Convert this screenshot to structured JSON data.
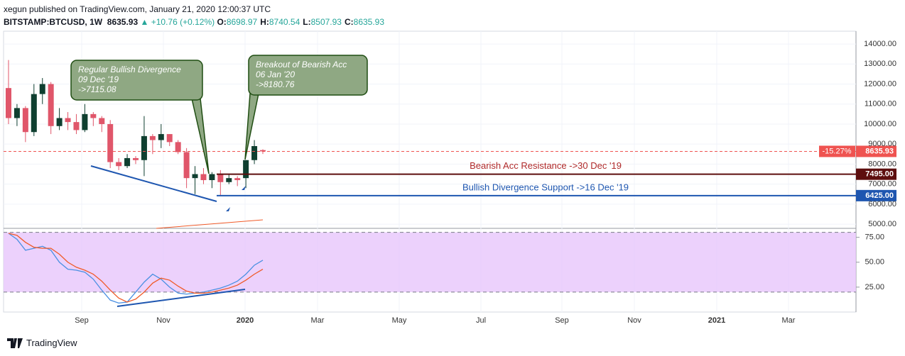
{
  "header": {
    "title": "xegun published on TradingView.com, January 21, 2020 12:00:37 UTC",
    "symbol": "BITSTAMP:BTCUSD, 1W",
    "price": "8635.93",
    "change": "▲ +10.76 (+0.12%)",
    "ohlc": [
      {
        "key": "O:",
        "value": "8698.97"
      },
      {
        "key": "H:",
        "value": "8740.54"
      },
      {
        "key": "L:",
        "value": "8507.93"
      },
      {
        "key": "C:",
        "value": "8635.93"
      }
    ]
  },
  "footer": {
    "brand": "TradingView"
  },
  "chart_data": {
    "type": "candlestick",
    "open": [
      11800,
      10300,
      10800,
      9600,
      11500,
      12000,
      9900,
      10300,
      10100,
      9700,
      10500,
      10300,
      10000,
      8100,
      7900,
      8300,
      8200,
      9400,
      9200,
      9500,
      9100,
      8600,
      7300,
      7500,
      7200,
      7500,
      7100,
      7300,
      7300,
      8200,
      8698.97
    ],
    "high": [
      13200,
      11000,
      10900,
      12000,
      12300,
      12100,
      10800,
      10600,
      10500,
      11000,
      10600,
      10400,
      10200,
      8300,
      8500,
      8400,
      10400,
      9500,
      10000,
      9500,
      9200,
      8800,
      7900,
      7800,
      7600,
      7700,
      7500,
      7400,
      8200,
      9200,
      8740.54
    ],
    "low": [
      10000,
      9900,
      9100,
      9400,
      11000,
      9500,
      9700,
      9700,
      9500,
      9600,
      9900,
      9600,
      7800,
      7700,
      7800,
      8000,
      7400,
      8500,
      8800,
      8900,
      8500,
      6800,
      6500,
      7000,
      6800,
      6400,
      7000,
      6900,
      6800,
      8000,
      8507.93
    ],
    "close": [
      10300,
      10800,
      9600,
      11500,
      12000,
      9900,
      10300,
      10100,
      9700,
      10500,
      10300,
      10000,
      8100,
      7900,
      8300,
      8200,
      9400,
      9200,
      9500,
      9100,
      8600,
      7300,
      7500,
      7200,
      7500,
      7100,
      7300,
      7200,
      8200,
      8900,
      8635.93
    ],
    "up_color": "#0f3f30",
    "down_color": "#e0566a",
    "ylim": [
      4790,
      14640
    ],
    "yticks": [
      {
        "value": 5000,
        "label": "5000.00"
      },
      {
        "value": 6000,
        "label": "6000.00"
      },
      {
        "value": 7000,
        "label": "7000.00"
      },
      {
        "value": 8000,
        "label": "8000.00"
      },
      {
        "value": 9000,
        "label": "9000.00"
      },
      {
        "value": 10000,
        "label": "10000.00"
      },
      {
        "value": 11000,
        "label": "11000.00"
      },
      {
        "value": 12000,
        "label": "12000.00"
      },
      {
        "value": 13000,
        "label": "13000.00"
      },
      {
        "value": 14000,
        "label": "14000.00"
      }
    ],
    "xticks": [
      "Sep",
      "Nov",
      "2020",
      "Mar",
      "May",
      "Jul",
      "Sep",
      "Nov",
      "2021",
      "Mar"
    ],
    "grid": true,
    "levels": [
      {
        "value": 8635.93,
        "label": "8635.93",
        "change": "-15.27%",
        "color": "#ef5350",
        "dashed": true
      },
      {
        "value": 7495,
        "label": "7495.00",
        "text": "Bearish Acc Resistance ->30 Dec '19",
        "color": "#5d0e0e",
        "text_color": "#b02a2a"
      },
      {
        "value": 6425,
        "label": "6425.00",
        "text": "Bullish Divergence Support ->16 Dec '19",
        "color": "#1e56b0",
        "text_color": "#1e56b0"
      }
    ],
    "annotations": [
      {
        "lines": [
          "Regular Bullish Divergence",
          "09 Dec '19",
          "->7115.08"
        ]
      },
      {
        "lines": [
          "Breakout of Bearish Acc",
          "06 Jan '20",
          "->8180.76"
        ]
      }
    ],
    "oscillator": {
      "ylim": [
        0,
        84
      ],
      "yticks": [
        {
          "value": 25,
          "label": "25.00"
        },
        {
          "value": 50,
          "label": "50.00"
        },
        {
          "value": 75,
          "label": "75.00"
        }
      ],
      "bands": [
        20,
        80
      ],
      "band_color": "#e7c6fb",
      "series": [
        {
          "color": "#4a90e2",
          "values": [
            79,
            73,
            62,
            64,
            66,
            62,
            50,
            43,
            42,
            40,
            33,
            22,
            12,
            9,
            10,
            20,
            30,
            38,
            33,
            25,
            19,
            18,
            19,
            20,
            22,
            24,
            27,
            31,
            38,
            47,
            52
          ]
        },
        {
          "color": "#f05a28",
          "values": [
            79,
            77,
            70,
            65,
            64,
            64,
            58,
            50,
            45,
            42,
            38,
            31,
            22,
            14,
            10,
            13,
            20,
            29,
            34,
            32,
            26,
            21,
            19,
            19,
            20,
            22,
            24,
            27,
            32,
            38,
            43
          ]
        }
      ]
    }
  }
}
